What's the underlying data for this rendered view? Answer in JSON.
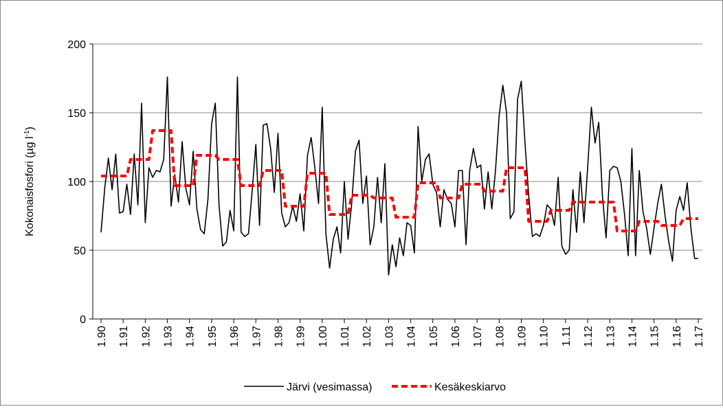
{
  "chart_data": {
    "type": "line",
    "y_label": "Kokonaisfosfori (µg l",
    "y_label_sup": "-1",
    "y_label_end": ")",
    "categories": [
      "1.90",
      null,
      null,
      null,
      null,
      null,
      "1.91",
      null,
      null,
      null,
      null,
      null,
      "1.92",
      null,
      null,
      null,
      null,
      null,
      "1.93",
      null,
      null,
      null,
      null,
      null,
      "1.94",
      null,
      null,
      null,
      null,
      null,
      "1.95",
      null,
      null,
      null,
      null,
      null,
      "1.96",
      null,
      null,
      null,
      null,
      null,
      "1.97",
      null,
      null,
      null,
      null,
      null,
      "1.98",
      null,
      null,
      null,
      null,
      null,
      "1.99",
      null,
      null,
      null,
      null,
      null,
      "1.00",
      null,
      null,
      null,
      null,
      null,
      "1.01",
      null,
      null,
      null,
      null,
      null,
      "1.02",
      null,
      null,
      null,
      null,
      null,
      "1.03",
      null,
      null,
      null,
      null,
      null,
      "1.04",
      null,
      null,
      null,
      null,
      null,
      "1.05",
      null,
      null,
      null,
      null,
      null,
      "1.06",
      null,
      null,
      null,
      null,
      null,
      "1.07",
      null,
      null,
      null,
      null,
      null,
      "1.08",
      null,
      null,
      null,
      null,
      null,
      "1.09",
      null,
      null,
      null,
      null,
      null,
      "1.10",
      null,
      null,
      null,
      null,
      null,
      "1.11",
      null,
      null,
      null,
      null,
      null,
      "1.12",
      null,
      null,
      null,
      null,
      null,
      "1.13",
      null,
      null,
      null,
      null,
      null,
      "1.14",
      null,
      null,
      null,
      null,
      null,
      "1.15",
      null,
      null,
      null,
      null,
      null,
      "1.16",
      null,
      null,
      null,
      null,
      null,
      "1.17"
    ],
    "series": [
      {
        "name": "Järvi (vesimassa)",
        "color": "#000000",
        "dashed": false,
        "values": [
          63,
          95,
          117,
          94,
          120,
          77,
          78,
          98,
          76,
          120,
          83,
          157,
          70,
          110,
          103,
          108,
          107,
          116,
          176,
          82,
          105,
          85,
          129,
          95,
          83,
          122,
          80,
          65,
          62,
          87,
          142,
          157,
          83,
          53,
          56,
          79,
          64,
          176,
          63,
          60,
          62,
          93,
          127,
          68,
          141,
          142,
          124,
          92,
          135,
          77,
          67,
          70,
          82,
          71,
          91,
          64,
          119,
          132,
          110,
          84,
          154,
          62,
          37,
          58,
          67,
          48,
          100,
          58,
          84,
          122,
          130,
          84,
          104,
          54,
          67,
          103,
          70,
          113,
          32,
          54,
          38,
          59,
          46,
          70,
          68,
          48,
          140,
          100,
          116,
          120,
          98,
          92,
          67,
          94,
          87,
          84,
          67,
          108,
          108,
          54,
          108,
          124,
          110,
          112,
          80,
          107,
          80,
          108,
          148,
          170,
          150,
          73,
          78,
          160,
          173,
          128,
          90,
          60,
          62,
          60,
          68,
          83,
          80,
          68,
          103,
          53,
          47,
          50,
          94,
          63,
          107,
          70,
          110,
          154,
          128,
          143,
          90,
          59,
          108,
          111,
          110,
          100,
          76,
          46,
          124,
          46,
          108,
          78,
          66,
          47,
          66,
          84,
          98,
          75,
          56,
          42,
          79,
          89,
          79,
          99,
          66,
          44,
          44
        ]
      },
      {
        "name": "Kesäkeskiarvo",
        "color": "#ff0000",
        "dashed": true,
        "values": [
          104,
          104,
          104,
          104,
          104,
          104,
          104,
          104,
          116,
          116,
          116,
          116,
          116,
          116,
          137,
          137,
          137,
          137,
          137,
          137,
          97,
          97,
          97,
          97,
          97,
          97,
          119,
          119,
          119,
          119,
          119,
          119,
          116,
          116,
          116,
          116,
          116,
          116,
          97,
          97,
          97,
          97,
          97,
          97,
          108,
          108,
          108,
          108,
          108,
          108,
          82,
          82,
          82,
          82,
          82,
          82,
          106,
          106,
          106,
          106,
          106,
          106,
          76,
          76,
          76,
          76,
          76,
          76,
          90,
          90,
          90,
          90,
          90,
          90,
          88,
          88,
          88,
          88,
          88,
          88,
          74,
          74,
          74,
          74,
          74,
          74,
          99,
          99,
          99,
          99,
          99,
          99,
          88,
          88,
          88,
          88,
          88,
          88,
          98,
          98,
          98,
          98,
          98,
          98,
          93,
          93,
          93,
          93,
          93,
          93,
          110,
          110,
          110,
          110,
          110,
          110,
          71,
          71,
          71,
          71,
          71,
          71,
          79,
          79,
          79,
          79,
          79,
          79,
          85,
          85,
          85,
          85,
          85,
          85,
          85,
          85,
          85,
          85,
          85,
          85,
          64,
          64,
          64,
          64,
          64,
          64,
          71,
          71,
          71,
          71,
          71,
          71,
          68,
          68,
          68,
          68,
          68,
          68,
          73,
          73,
          73,
          73,
          73
        ]
      }
    ],
    "ylim": [
      0,
      200
    ],
    "yticks": [
      0,
      50,
      100,
      150,
      200
    ],
    "grid": true
  }
}
